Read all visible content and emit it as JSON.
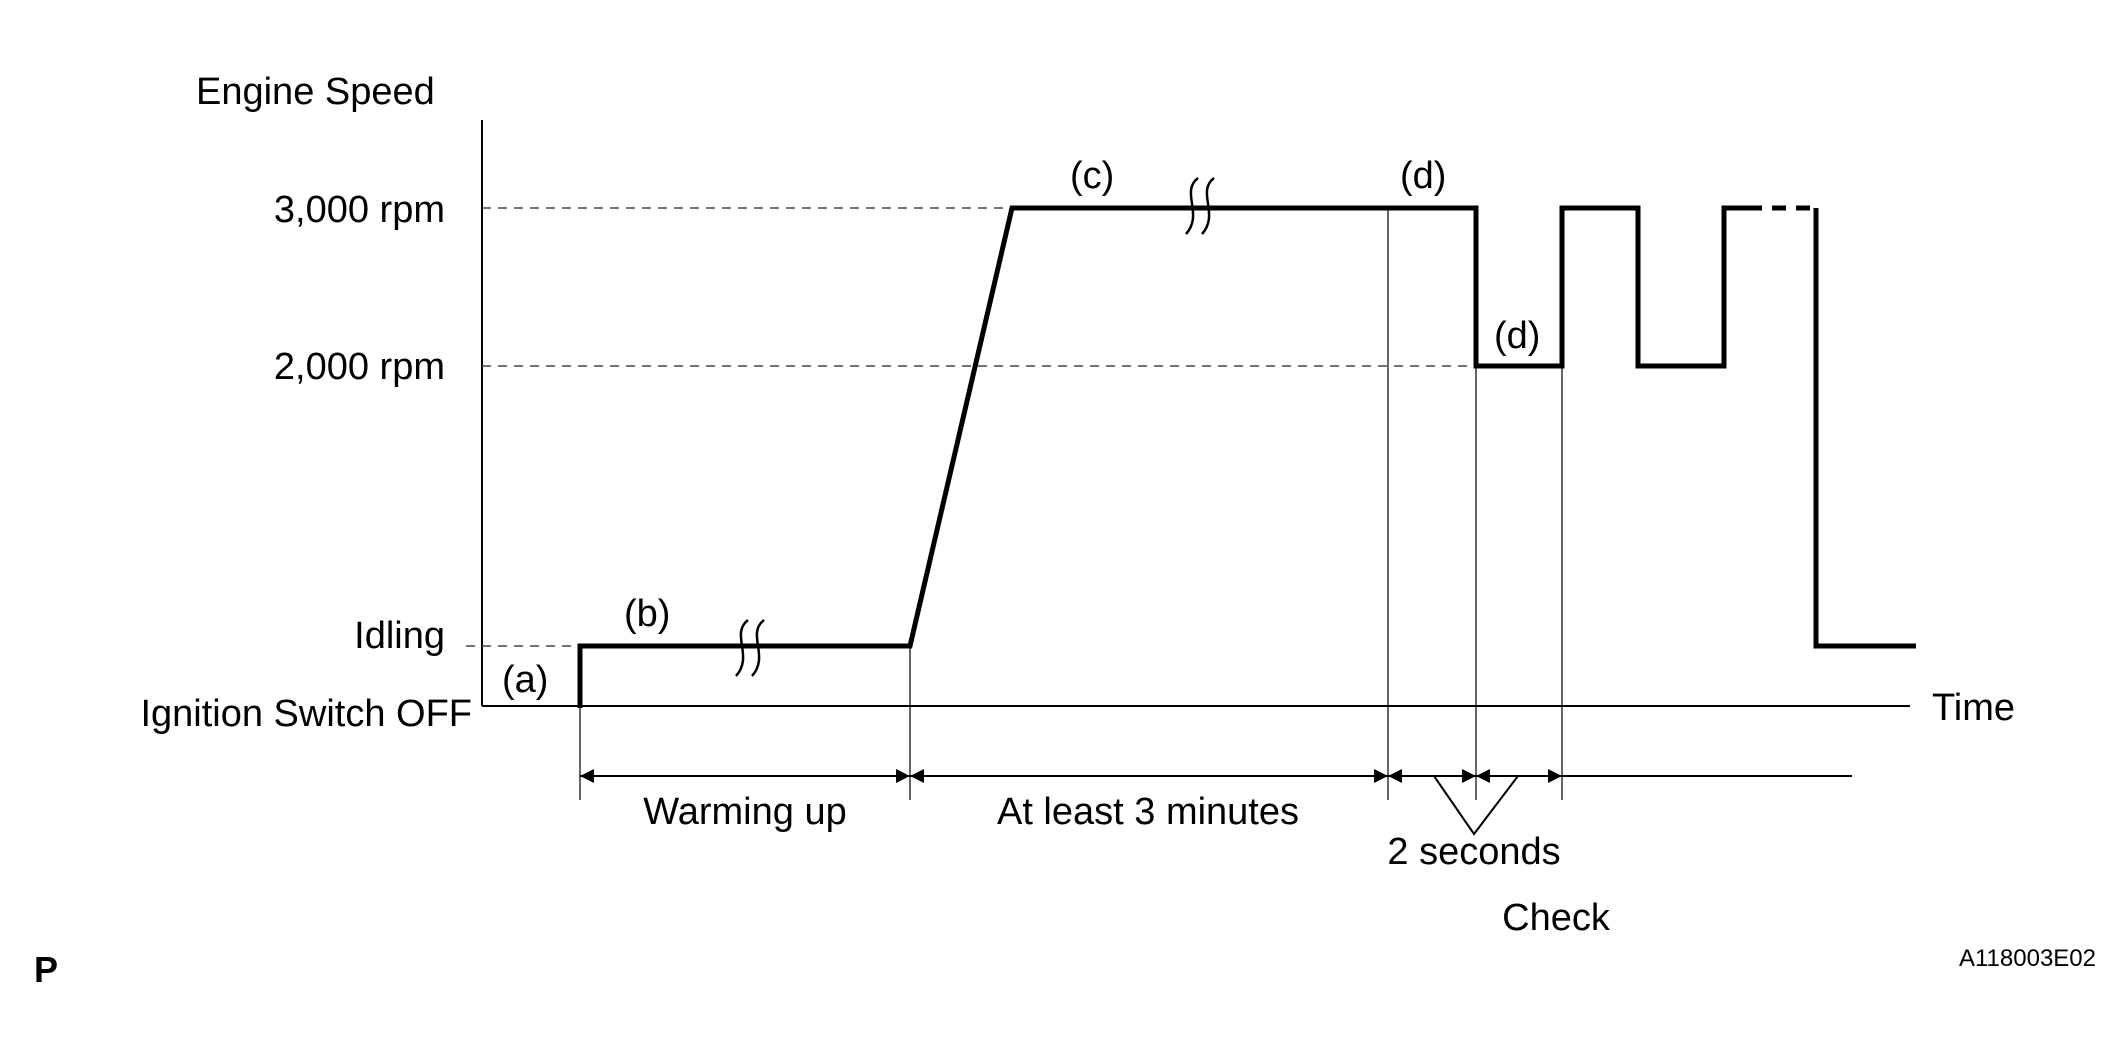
{
  "y_axis": {
    "title": "Engine Speed",
    "levels": {
      "high": "3,000 rpm",
      "mid": "2,000 rpm",
      "idle": "Idling",
      "off": "Ignition Switch OFF"
    }
  },
  "x_axis": {
    "title": "Time"
  },
  "step_labels": {
    "a": "(a)",
    "b": "(b)",
    "c": "(c)",
    "d_high": "(d)",
    "d_low": "(d)"
  },
  "durations": {
    "warming": "Warming up",
    "three_min": "At least 3 minutes",
    "two_sec": "2 seconds",
    "check": "Check"
  },
  "corner": {
    "page_mark": "P",
    "figure_id": "A118003E02"
  }
}
